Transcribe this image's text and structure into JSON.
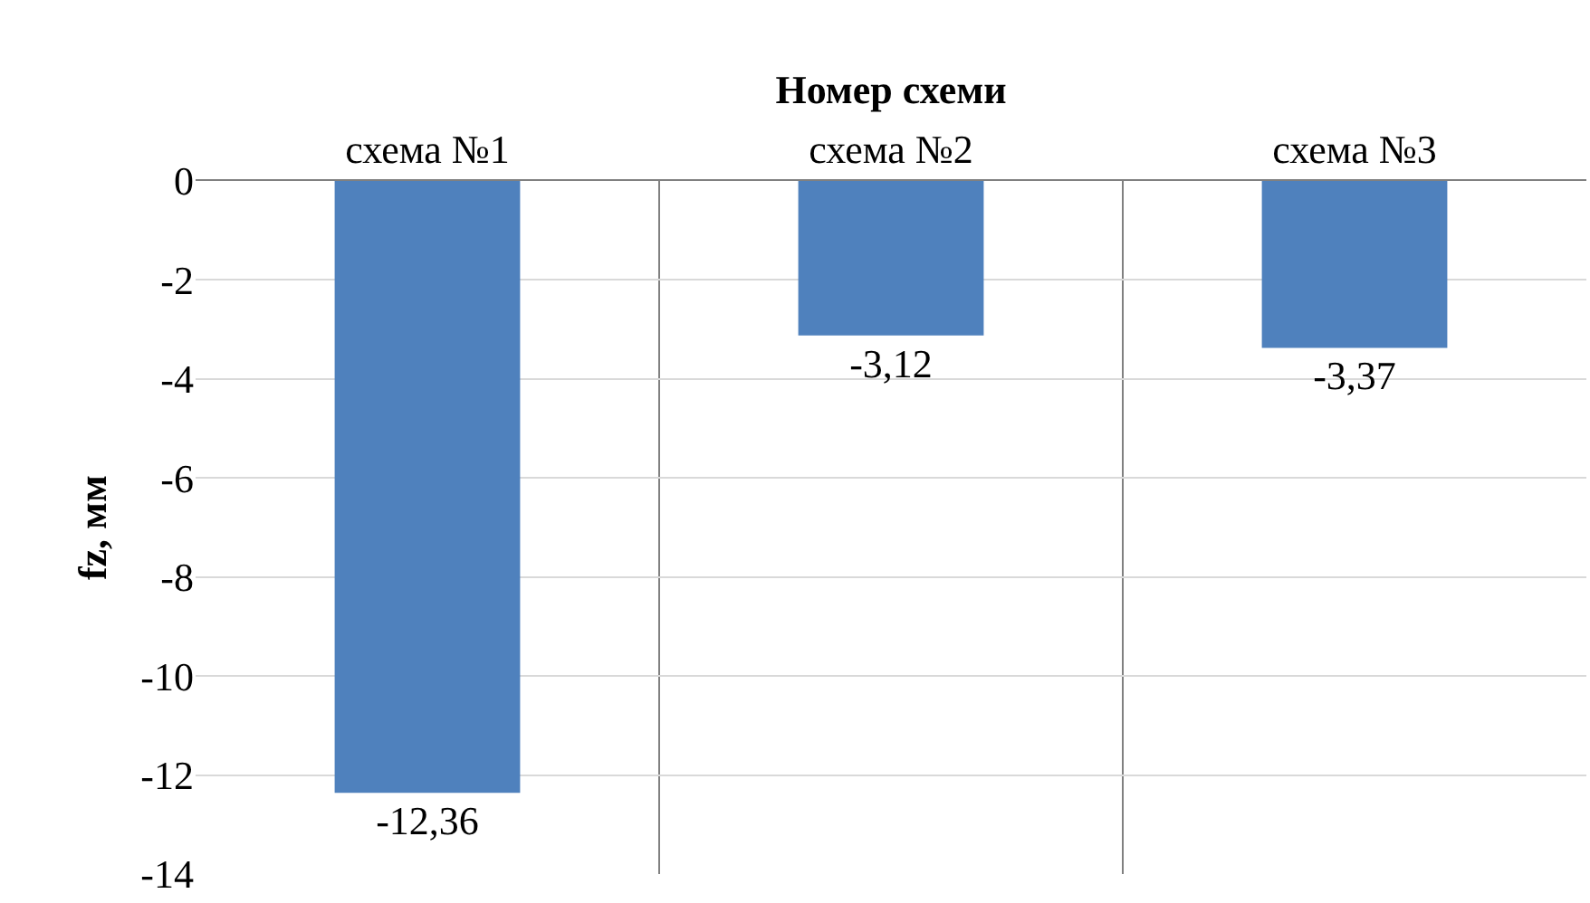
{
  "chart_data": {
    "type": "bar",
    "xlabel": "Номер схеми",
    "ylabel": "fz, мм",
    "categories": [
      "схема №1",
      "схема №2",
      "схема №3"
    ],
    "values": [
      -12.36,
      -3.12,
      -3.37
    ],
    "value_labels": [
      "-12,36",
      "-3,12",
      "-3,37"
    ],
    "color": "#4f81bd",
    "ylim": [
      -14,
      0
    ],
    "yticks": [
      0,
      -2,
      -4,
      -6,
      -8,
      -10,
      -12,
      -14
    ],
    "grid": true
  }
}
